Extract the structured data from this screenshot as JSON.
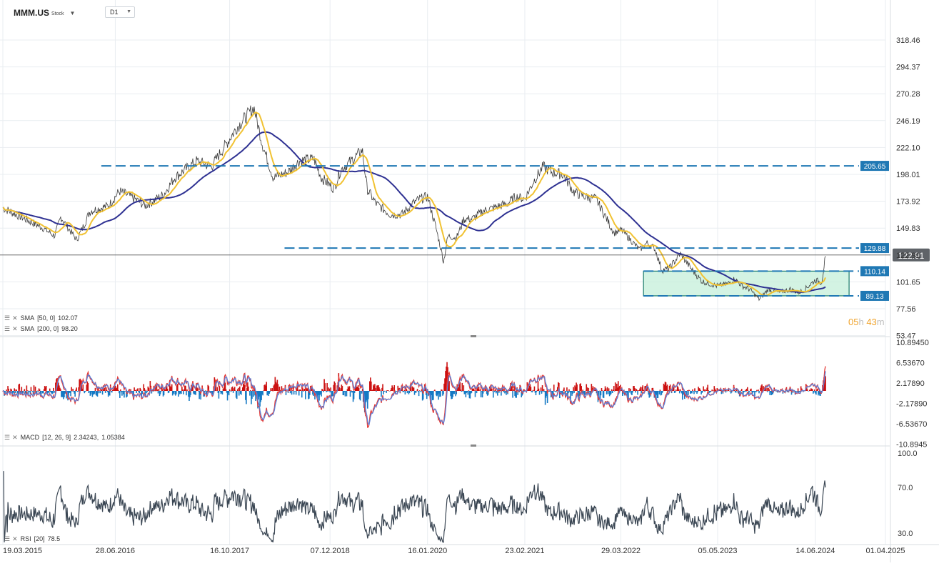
{
  "header": {
    "symbol": "MMM.US",
    "symbol_type": "Stock",
    "timeframe": "D1"
  },
  "countdown": {
    "hours": "05",
    "hours_unit": "h",
    "minutes": "43",
    "minutes_unit": "m"
  },
  "indicators": {
    "sma50": {
      "name": "SMA",
      "params": "[50, 0]",
      "value": "102.07",
      "color": "#f1c232"
    },
    "sma200": {
      "name": "SMA",
      "params": "[200, 0]",
      "value": "98.20",
      "color": "#2e3192"
    },
    "macd": {
      "name": "MACD",
      "params": "[12, 26, 9]",
      "value1": "2.34243,",
      "value2": "1.05384"
    },
    "rsi": {
      "name": "RSI",
      "params": "[20]",
      "value": "78.5"
    }
  },
  "colors": {
    "price_line": "#3a3a3a",
    "level_line": "#1f78b4",
    "level_badge": "#1f78b4",
    "zone_fill": "#c8f0dc",
    "zone_border": "#1a7a6a",
    "macd_positive": "#cc1111",
    "macd_negative": "#1479c4",
    "macd_line": "#e53935",
    "signal_line": "#5b7fd6",
    "rsi_line": "#3a4653"
  },
  "chart_data": [
    {
      "type": "line",
      "panel": "price",
      "log_scale": true,
      "y_ticks": [
        "318.46",
        "294.37",
        "270.28",
        "246.19",
        "222.10",
        "198.01",
        "173.92",
        "149.83",
        "122.91",
        "101.65",
        "77.56",
        "53.47"
      ],
      "ylim": [
        53.47,
        318.46
      ],
      "x_ticks": [
        "19.03.2015",
        "28.06.2016",
        "16.10.2017",
        "07.12.2018",
        "16.01.2020",
        "23.02.2021",
        "29.03.2022",
        "05.05.2023",
        "14.06.2024",
        "01.04.2025"
      ],
      "x_range": [
        "2015-03-19",
        "2025-04-01"
      ],
      "current_price": {
        "value": 122.91,
        "label": "122.91"
      },
      "levels": [
        {
          "value": 205.65,
          "label": "205.65",
          "from": "2016-05-01",
          "to": "2025-03-01"
        },
        {
          "value": 129.88,
          "label": "129.88",
          "from": "2018-06-01",
          "to": "2025-03-01"
        },
        {
          "value": 110.14,
          "label": "110.14",
          "from": "2022-07-01",
          "to": "2024-11-01"
        },
        {
          "value": 89.13,
          "label": "89.13",
          "from": "2022-07-01",
          "to": "2024-11-01"
        }
      ],
      "zone": {
        "from": "2022-07-01",
        "to": "2024-11-01",
        "low": 89.13,
        "high": 110.14
      },
      "series": [
        {
          "role": "price",
          "points": [
            [
              "2015-03-19",
              168
            ],
            [
              "2015-06-01",
              160
            ],
            [
              "2015-09-01",
              150
            ],
            [
              "2015-10-20",
              142
            ],
            [
              "2015-11-15",
              160
            ],
            [
              "2016-01-20",
              138
            ],
            [
              "2016-03-15",
              165
            ],
            [
              "2016-06-01",
              170
            ],
            [
              "2016-07-15",
              183
            ],
            [
              "2016-09-01",
              178
            ],
            [
              "2016-11-01",
              170
            ],
            [
              "2017-01-15",
              180
            ],
            [
              "2017-03-01",
              195
            ],
            [
              "2017-06-01",
              210
            ],
            [
              "2017-08-01",
              205
            ],
            [
              "2017-10-01",
              225
            ],
            [
              "2017-11-15",
              240
            ],
            [
              "2018-01-25",
              258
            ],
            [
              "2018-03-01",
              225
            ],
            [
              "2018-04-15",
              195
            ],
            [
              "2018-06-15",
              200
            ],
            [
              "2018-08-01",
              210
            ],
            [
              "2018-10-01",
              212
            ],
            [
              "2018-11-01",
              195
            ],
            [
              "2018-12-24",
              185
            ],
            [
              "2019-01-20",
              202
            ],
            [
              "2019-03-15",
              212
            ],
            [
              "2019-04-20",
              220
            ],
            [
              "2019-05-10",
              185
            ],
            [
              "2019-06-15",
              172
            ],
            [
              "2019-08-15",
              162
            ],
            [
              "2019-10-01",
              162
            ],
            [
              "2019-11-15",
              172
            ],
            [
              "2019-12-15",
              176
            ],
            [
              "2020-01-16",
              178
            ],
            [
              "2020-02-20",
              150
            ],
            [
              "2020-03-23",
              117
            ],
            [
              "2020-04-10",
              142
            ],
            [
              "2020-05-15",
              140
            ],
            [
              "2020-06-15",
              158
            ],
            [
              "2020-07-20",
              158
            ],
            [
              "2020-09-01",
              165
            ],
            [
              "2020-10-15",
              168
            ],
            [
              "2020-11-15",
              170
            ],
            [
              "2020-12-15",
              172
            ],
            [
              "2021-01-15",
              178
            ],
            [
              "2021-02-23",
              176
            ],
            [
              "2021-04-01",
              192
            ],
            [
              "2021-05-10",
              205
            ],
            [
              "2021-06-15",
              200
            ],
            [
              "2021-08-01",
              198
            ],
            [
              "2021-09-15",
              182
            ],
            [
              "2021-11-01",
              178
            ],
            [
              "2021-12-15",
              176
            ],
            [
              "2022-01-20",
              162
            ],
            [
              "2022-03-01",
              145
            ],
            [
              "2022-04-01",
              148
            ],
            [
              "2022-05-01",
              140
            ],
            [
              "2022-06-15",
              128
            ],
            [
              "2022-07-15",
              135
            ],
            [
              "2022-08-15",
              130
            ],
            [
              "2022-09-15",
              111
            ],
            [
              "2022-10-15",
              112
            ],
            [
              "2022-12-01",
              124
            ],
            [
              "2023-01-15",
              112
            ],
            [
              "2023-03-01",
              102
            ],
            [
              "2023-05-01",
              98
            ],
            [
              "2023-06-15",
              100
            ],
            [
              "2023-07-15",
              104
            ],
            [
              "2023-08-15",
              98
            ],
            [
              "2023-09-15",
              95
            ],
            [
              "2023-10-25",
              86
            ],
            [
              "2023-12-01",
              95
            ],
            [
              "2024-01-15",
              92
            ],
            [
              "2024-03-01",
              95
            ],
            [
              "2024-04-05",
              92
            ],
            [
              "2024-05-01",
              95
            ],
            [
              "2024-06-01",
              101
            ],
            [
              "2024-06-14",
              103
            ],
            [
              "2024-07-10",
              101
            ],
            [
              "2024-07-26",
              122
            ]
          ]
        },
        {
          "role": "sma50",
          "name": "SMA"
        },
        {
          "role": "sma200",
          "name": "SMA"
        }
      ]
    },
    {
      "type": "bar",
      "panel": "macd",
      "y_ticks": [
        "10.89450",
        "6.53670",
        "2.17890",
        "-2.17890",
        "-6.53670",
        "-10.8945"
      ],
      "ylim": [
        -10.8945,
        10.8945
      ],
      "series": [
        {
          "role": "macd",
          "value": 2.34243
        },
        {
          "role": "signal",
          "value": 1.05384
        },
        {
          "role": "histogram"
        }
      ]
    },
    {
      "type": "line",
      "panel": "rsi",
      "y_ticks": [
        "100.0",
        "70.0",
        "30.0"
      ],
      "ylim": [
        20,
        100
      ],
      "series": [
        {
          "role": "rsi",
          "period": 20,
          "last": 78.5
        }
      ]
    }
  ]
}
